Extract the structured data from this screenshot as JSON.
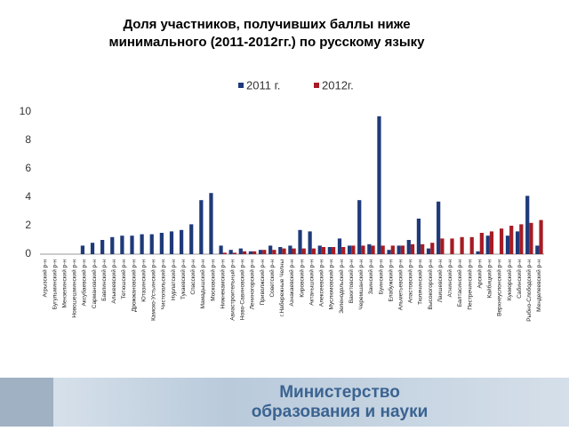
{
  "chart_data": {
    "type": "bar",
    "title": [
      "Доля участников, получивших баллы ниже",
      "минимального (2011-2012гг.) по русскому языку"
    ],
    "categories": [
      "Агрызский р-н",
      "Бугульминский р-н",
      "Мензелинский р-н",
      "Новошешминский р-н",
      "Аксубаевский р-н",
      "Сармановский р-н",
      "Бавлинский р-н",
      "Алькеевский р-н",
      "Тетюшский р-н",
      "Дрожжановский р-н",
      "Ютазинский р-н",
      "Камско-Устьинский р-н",
      "Чистопольский р-н",
      "Нурлатский р-н",
      "Тукаевский р-н",
      "Спасский р-н",
      "Мамадышский р-н",
      "Московский р-н",
      "Нижнекамский р-н",
      "Авиастроительный р-н",
      "Ново-Савиновский р-н",
      "Лениногорский р-н",
      "Приволжский р-н",
      "Советский р-н",
      "г.Набережные Челны",
      "Азнакаевский р-н",
      "Кировский р-н",
      "Актанышский р-н",
      "Алексеевский р-н",
      "Муслюмовский р-н",
      "Зеленодольский р-н",
      "Вахитовский р-н",
      "Черемшанский р-н",
      "Заинский р-н",
      "Буинский р-н",
      "Елабужский р-н",
      "Альметьевский р-н",
      "Апастовский р-н",
      "Тюлячинский р-н",
      "Высокогорский р-н",
      "Лаишевский р-н",
      "Атнинский р-н",
      "Балтасинский р-н",
      "Пестречинский р-н",
      "Арский р-н",
      "Кайбицкий р-н",
      "Верхнеуслонский р-н",
      "Кукморский р-н",
      "Сабинский р-н",
      "Рыбно-Слободский р-н",
      "Менделеевский р-н"
    ],
    "series": [
      {
        "name": "2011 г.",
        "color": "#1f3a7a",
        "values": [
          0,
          0,
          0,
          0,
          0.6,
          0.8,
          1.0,
          1.2,
          1.3,
          1.3,
          1.4,
          1.4,
          1.5,
          1.6,
          1.7,
          2.1,
          3.8,
          4.3,
          0.6,
          0.3,
          0.4,
          0.2,
          0.3,
          0.6,
          0.5,
          0.6,
          1.7,
          1.6,
          0.6,
          0.5,
          1.1,
          0.6,
          3.8,
          0.7,
          9.7,
          0.3,
          0.6,
          1.0,
          2.5,
          0.4,
          3.7,
          0,
          0,
          0,
          0.2,
          1.3,
          0,
          1.3,
          1.6,
          4.1,
          0.6
        ]
      },
      {
        "name": "2012г.",
        "color": "#a61c24",
        "values": [
          0,
          0,
          0,
          0,
          0,
          0,
          0,
          0,
          0,
          0,
          0,
          0,
          0,
          0,
          0,
          0,
          0,
          0,
          0.1,
          0.1,
          0.2,
          0.2,
          0.3,
          0.3,
          0.4,
          0.4,
          0.4,
          0.4,
          0.5,
          0.5,
          0.5,
          0.6,
          0.6,
          0.6,
          0.6,
          0.6,
          0.6,
          0.7,
          0.7,
          0.8,
          1.1,
          1.1,
          1.2,
          1.2,
          1.5,
          1.6,
          1.8,
          2.0,
          2.1,
          2.2,
          2.4
        ]
      }
    ],
    "ylim": [
      0,
      10
    ],
    "yticks": [
      0,
      2,
      4,
      6,
      8,
      10
    ],
    "grid": false,
    "legend": "top"
  },
  "footer": [
    "Министерство",
    "образования и науки"
  ]
}
